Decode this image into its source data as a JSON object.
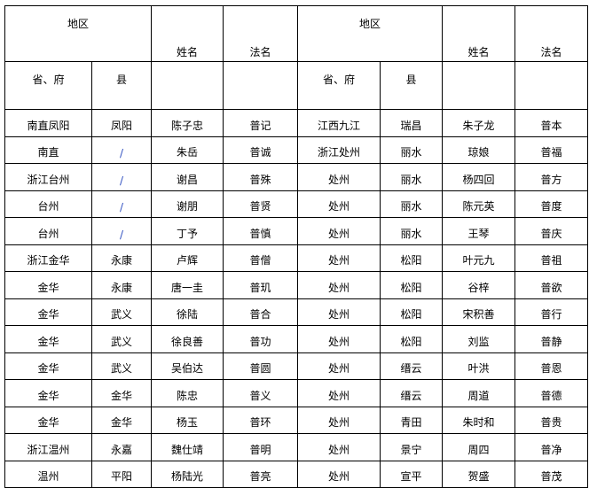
{
  "header": {
    "left": {
      "region": "地区",
      "name": "姓名",
      "dharma_name": "法名",
      "province": "省、府",
      "county": "县"
    },
    "right": {
      "region": "地区",
      "name": "姓名",
      "dharma_name": "法名",
      "province": "省、府",
      "county": "县"
    }
  },
  "rows": [
    [
      [
        "南直凤阳",
        "凤阳",
        "陈子忠",
        "普记"
      ],
      [
        "江西九江",
        "瑞昌",
        "朱子龙",
        "普本"
      ]
    ],
    [
      [
        "南直",
        "/",
        "朱岳",
        "普诚"
      ],
      [
        "浙江处州",
        "丽水",
        "琼娘",
        "普福"
      ]
    ],
    [
      [
        "浙江台州",
        "/",
        "谢昌",
        "普殊"
      ],
      [
        "处州",
        "丽水",
        "杨四回",
        "普方"
      ]
    ],
    [
      [
        "台州",
        "/",
        "谢朋",
        "普贤"
      ],
      [
        "处州",
        "丽水",
        "陈元英",
        "普度"
      ]
    ],
    [
      [
        "台州",
        "/",
        "丁予",
        "普慎"
      ],
      [
        "处州",
        "丽水",
        "王琴",
        "普庆"
      ]
    ],
    [
      [
        "浙江金华",
        "永康",
        "卢辉",
        "普僧"
      ],
      [
        "处州",
        "松阳",
        "叶元九",
        "普祖"
      ]
    ],
    [
      [
        "金华",
        "永康",
        "唐一圭",
        "普玑"
      ],
      [
        "处州",
        "松阳",
        "谷梓",
        "普欲"
      ]
    ],
    [
      [
        "金华",
        "武义",
        "徐陆",
        "普合"
      ],
      [
        "处州",
        "松阳",
        "宋积善",
        "普行"
      ]
    ],
    [
      [
        "金华",
        "武义",
        "徐良善",
        "普功"
      ],
      [
        "处州",
        "松阳",
        "刘监",
        "普静"
      ]
    ],
    [
      [
        "金华",
        "武义",
        "吴伯达",
        "普圆"
      ],
      [
        "处州",
        "缙云",
        "叶洪",
        "普恩"
      ]
    ],
    [
      [
        "金华",
        "金华",
        "陈忠",
        "普义"
      ],
      [
        "处州",
        "缙云",
        "周道",
        "普德"
      ]
    ],
    [
      [
        "金华",
        "金华",
        "杨玉",
        "普环"
      ],
      [
        "处州",
        "青田",
        "朱时和",
        "普贵"
      ]
    ],
    [
      [
        "浙江温州",
        "永嘉",
        "魏仕靖",
        "普明"
      ],
      [
        "处州",
        "景宁",
        "周四",
        "普净"
      ]
    ],
    [
      [
        "温州",
        "平阳",
        "杨陆光",
        "普亮"
      ],
      [
        "处州",
        "宣平",
        "贺盛",
        "普茂"
      ]
    ]
  ]
}
